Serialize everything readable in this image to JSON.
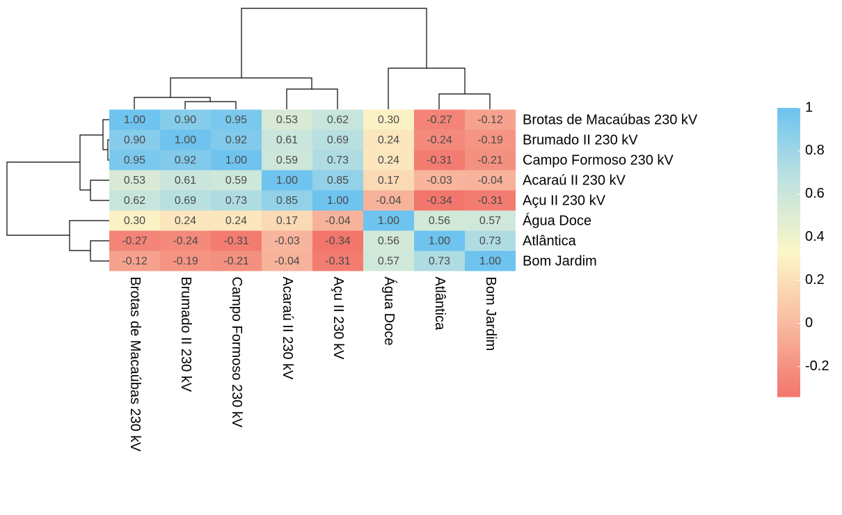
{
  "chart_data": {
    "type": "heatmap",
    "rows": [
      "Brotas de Macaúbas 230 kV",
      "Brumado II 230 kV",
      "Campo Formoso 230 kV",
      "Acaraú II 230 kV",
      "Açu II 230 kV",
      "Água Doce",
      "Atlântica",
      "Bom Jardim"
    ],
    "columns": [
      "Brotas de Macaúbas 230 kV",
      "Brumado II 230 kV",
      "Campo Formoso 230 kV",
      "Acaraú II 230 kV",
      "Açu II 230 kV",
      "Água Doce",
      "Atlântica",
      "Bom Jardim"
    ],
    "values": [
      [
        1,
        0.9,
        0.95,
        0.53,
        0.62,
        0.3,
        -0.27,
        -0.12
      ],
      [
        0.9,
        1,
        0.92,
        0.61,
        0.69,
        0.24,
        -0.24,
        -0.19
      ],
      [
        0.95,
        0.92,
        1,
        0.59,
        0.73,
        0.24,
        -0.31,
        -0.21
      ],
      [
        0.53,
        0.61,
        0.59,
        1,
        0.85,
        0.17,
        -0.03,
        -0.04
      ],
      [
        0.62,
        0.69,
        0.73,
        0.85,
        1,
        -0.04,
        -0.34,
        -0.31
      ],
      [
        0.3,
        0.24,
        0.24,
        0.17,
        -0.04,
        1,
        0.56,
        0.57
      ],
      [
        -0.27,
        -0.24,
        -0.31,
        -0.03,
        -0.34,
        0.56,
        1,
        0.73
      ],
      [
        -0.12,
        -0.19,
        -0.21,
        -0.04,
        -0.31,
        0.57,
        0.73,
        1
      ]
    ],
    "value_labels": [
      [
        "1.00",
        "0.90",
        "0.95",
        "0.53",
        "0.62",
        "0.30",
        "-0.27",
        "-0.12"
      ],
      [
        "0.90",
        "1.00",
        "0.92",
        "0.61",
        "0.69",
        "0.24",
        "-0.24",
        "-0.19"
      ],
      [
        "0.95",
        "0.92",
        "1.00",
        "0.59",
        "0.73",
        "0.24",
        "-0.31",
        "-0.21"
      ],
      [
        "0.53",
        "0.61",
        "0.59",
        "1.00",
        "0.85",
        "0.17",
        "-0.03",
        "-0.04"
      ],
      [
        "0.62",
        "0.69",
        "0.73",
        "0.85",
        "1.00",
        "-0.04",
        "-0.34",
        "-0.31"
      ],
      [
        "0.30",
        "0.24",
        "0.24",
        "0.17",
        "-0.04",
        "1.00",
        "0.56",
        "0.57"
      ],
      [
        "-0.27",
        "-0.24",
        "-0.31",
        "-0.03",
        "-0.34",
        "0.56",
        "1.00",
        "0.73"
      ],
      [
        "-0.12",
        "-0.19",
        "-0.21",
        "-0.04",
        "-0.31",
        "0.57",
        "0.73",
        "1.00"
      ]
    ],
    "colors": [
      "#f2766c",
      "#f8b9a0",
      "#fcf7c8",
      "#bfe2e0",
      "#6ec3ef"
    ],
    "clim": [
      -0.34,
      1
    ],
    "cticks": [
      1,
      0.8,
      0.6,
      0.4,
      0.2,
      0,
      -0.2
    ]
  }
}
